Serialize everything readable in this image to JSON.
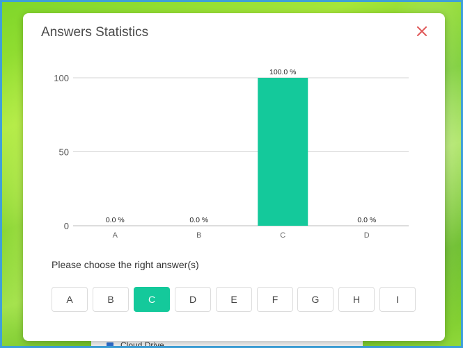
{
  "dialog": {
    "title": "Answers Statistics",
    "prompt": "Please choose the right answer(s)",
    "accent_color": "#14c99b",
    "close_color": "#e05a5a"
  },
  "options": [
    {
      "label": "A",
      "selected": false
    },
    {
      "label": "B",
      "selected": false
    },
    {
      "label": "C",
      "selected": true
    },
    {
      "label": "D",
      "selected": false
    },
    {
      "label": "E",
      "selected": false
    },
    {
      "label": "F",
      "selected": false
    },
    {
      "label": "G",
      "selected": false
    },
    {
      "label": "H",
      "selected": false
    },
    {
      "label": "I",
      "selected": false
    }
  ],
  "background": {
    "list_item_label": "Cloud Drive"
  },
  "chart_data": {
    "type": "bar",
    "categories": [
      "A",
      "B",
      "C",
      "D"
    ],
    "values": [
      0.0,
      0.0,
      100.0,
      0.0
    ],
    "value_labels": [
      "0.0 %",
      "0.0 %",
      "100.0 %",
      "0.0 %"
    ],
    "yticks": [
      0,
      50,
      100
    ],
    "ylim": [
      0,
      100
    ],
    "grid": true,
    "bar_color": "#14c99b"
  }
}
